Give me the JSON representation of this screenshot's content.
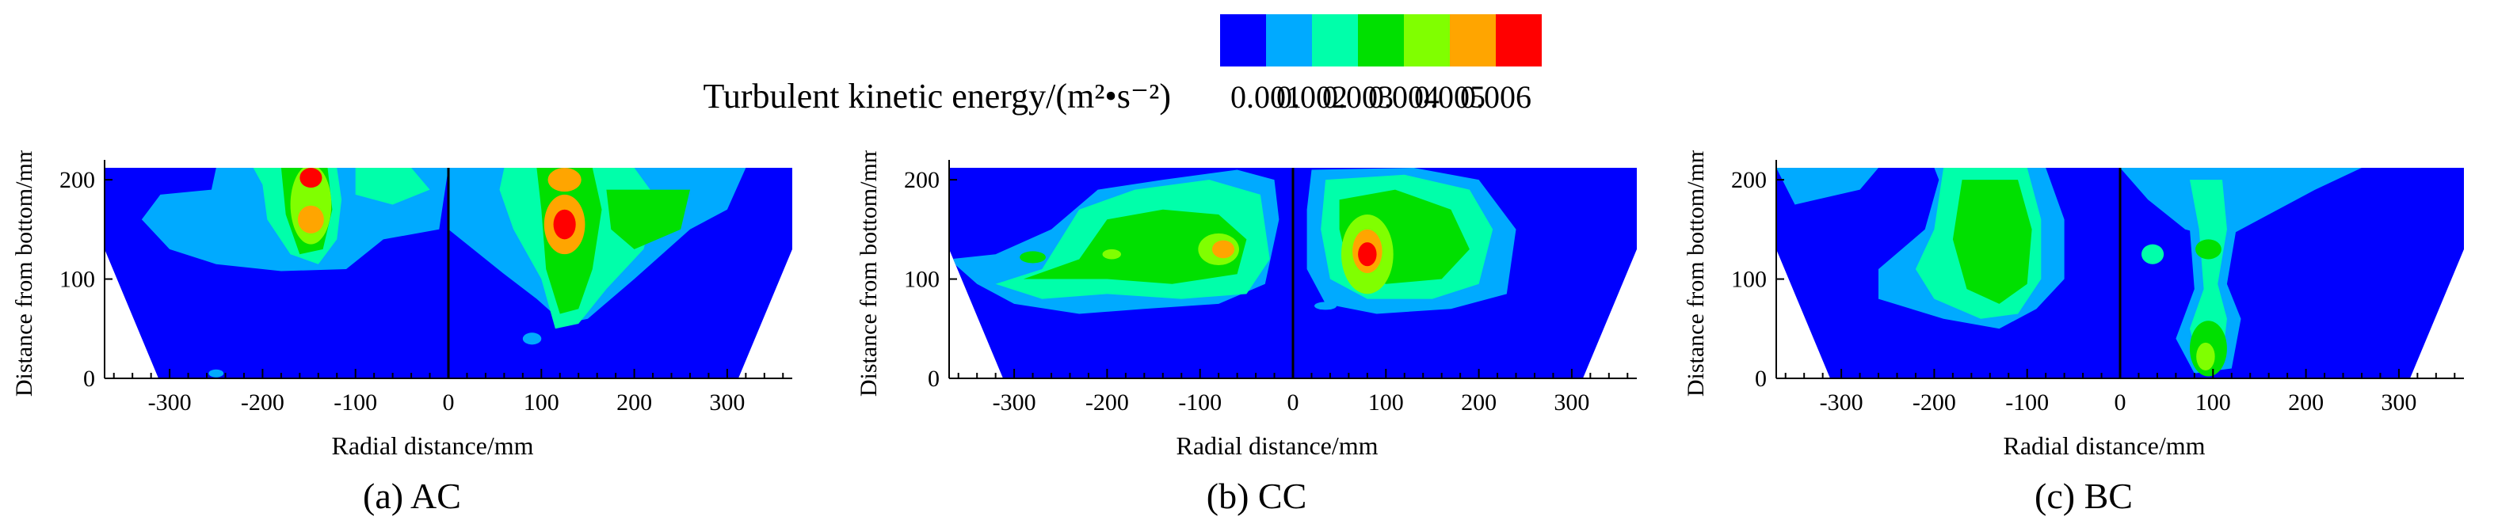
{
  "legend": {
    "title": "Turbulent kinetic energy/(m²•s⁻²)",
    "levels": [
      "0.001",
      "0.002",
      "0.003",
      "0.004",
      "0.005",
      "0.006"
    ],
    "colors": [
      "#0000ff",
      "#00aaff",
      "#00ffaa",
      "#00e000",
      "#80ff00",
      "#ffa500",
      "#ff0000"
    ]
  },
  "chart_data": [
    {
      "type": "heatmap",
      "caption": "(a) AC",
      "xlabel": "Radial distance/mm",
      "ylabel": "Distance from bottom/mm",
      "xticks": [
        "-300",
        "-200",
        "-100",
        "0",
        "100",
        "200",
        "300"
      ],
      "yticks": [
        "0",
        "100",
        "200"
      ],
      "xlim": [
        -370,
        370
      ],
      "ylim": [
        0,
        220
      ],
      "hotspots": [
        {
          "x": -148,
          "y": 200,
          "level": 0.006
        },
        {
          "x": -148,
          "y": 160,
          "level": 0.005
        },
        {
          "x": 125,
          "y": 155,
          "level": 0.006
        },
        {
          "x": 125,
          "y": 200,
          "level": 0.005
        }
      ]
    },
    {
      "type": "heatmap",
      "caption": "(b) CC",
      "xlabel": "Radial distance/mm",
      "ylabel": "Distance from bottom/mm",
      "xticks": [
        "-300",
        "-200",
        "-100",
        "0",
        "100",
        "200",
        "300"
      ],
      "yticks": [
        "0",
        "100",
        "200"
      ],
      "xlim": [
        -370,
        370
      ],
      "ylim": [
        0,
        220
      ],
      "hotspots": [
        {
          "x": -75,
          "y": 130,
          "level": 0.005
        },
        {
          "x": 80,
          "y": 125,
          "level": 0.006
        }
      ]
    },
    {
      "type": "heatmap",
      "caption": "(c) BC",
      "xlabel": "Radial distance/mm",
      "ylabel": "Distance from bottom/mm",
      "xticks": [
        "-300",
        "-200",
        "-100",
        "0",
        "100",
        "200",
        "300"
      ],
      "yticks": [
        "0",
        "100",
        "200"
      ],
      "xlim": [
        -370,
        370
      ],
      "ylim": [
        0,
        220
      ],
      "hotspots": [
        {
          "x": -130,
          "y": 130,
          "level": 0.004
        },
        {
          "x": 95,
          "y": 30,
          "level": 0.004
        }
      ]
    }
  ]
}
